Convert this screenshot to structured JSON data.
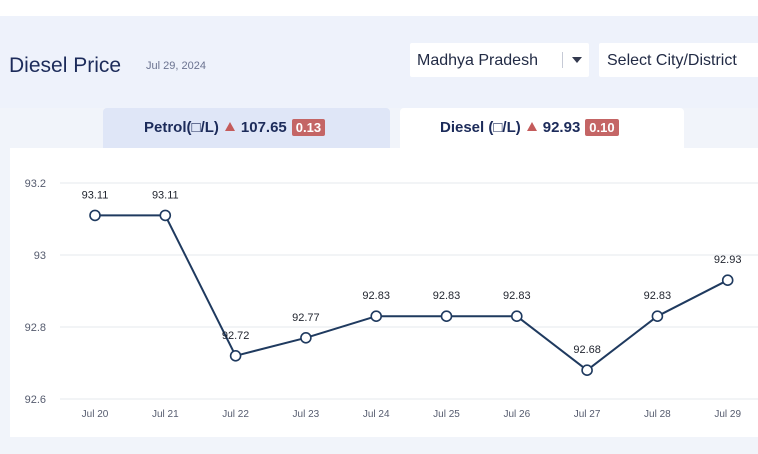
{
  "header": {
    "title": "Diesel Price",
    "date": "Jul 29, 2024",
    "state_select": {
      "value": "Madhya Pradesh"
    },
    "city_select": {
      "value": "Select City/District"
    }
  },
  "tabs": [
    {
      "label": "Petrol(□/L)",
      "price": "107.65",
      "change": "0.13",
      "active": false
    },
    {
      "label": "Diesel (□/L)",
      "price": "92.93",
      "change": "0.10",
      "active": true
    }
  ],
  "colors": {
    "line": "#1f3a5f",
    "badge": "#c46565",
    "up_arrow": "#c45b5b",
    "grid": "#e6e8ee"
  },
  "chart_data": {
    "type": "line",
    "categories": [
      "Jul 20",
      "Jul 21",
      "Jul 22",
      "Jul 23",
      "Jul 24",
      "Jul 25",
      "Jul 26",
      "Jul 27",
      "Jul 28",
      "Jul 29"
    ],
    "values": [
      93.11,
      93.11,
      92.72,
      92.77,
      92.83,
      92.83,
      92.83,
      92.68,
      92.83,
      92.93
    ],
    "data_labels": [
      "93.11",
      "93.11",
      "92.72",
      "92.77",
      "92.83",
      "92.83",
      "92.83",
      "92.68",
      "92.83",
      "92.93"
    ],
    "yticks": [
      "92.6",
      "92.8",
      "93",
      "93.2"
    ],
    "ylim": [
      92.6,
      93.2
    ],
    "grid": true,
    "title": "",
    "xlabel": "",
    "ylabel": ""
  }
}
